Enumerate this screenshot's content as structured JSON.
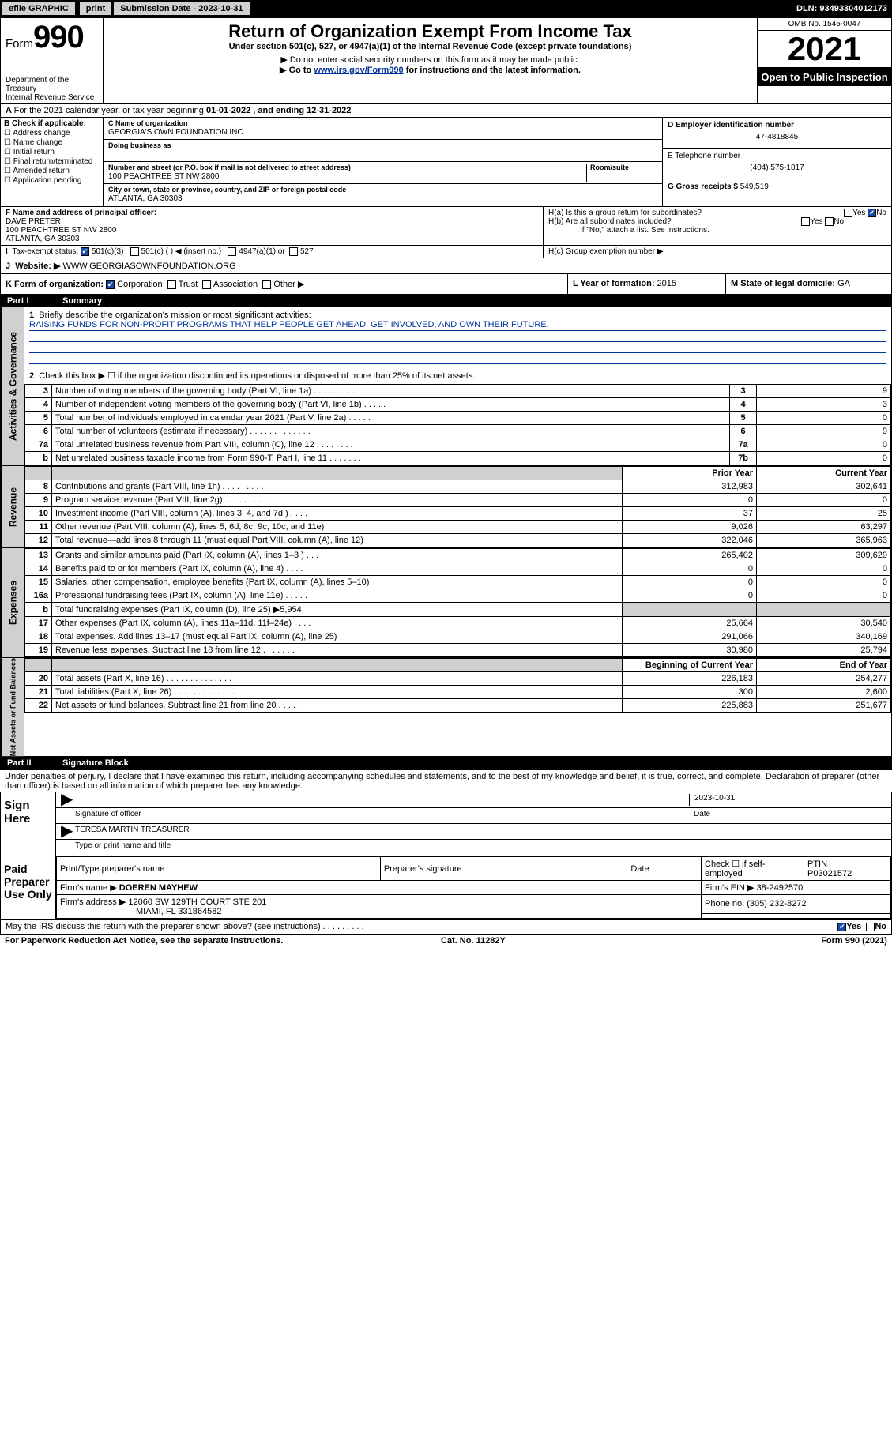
{
  "topbar": {
    "efile": "efile GRAPHIC",
    "print": "print",
    "subLabel": "Submission Date - ",
    "subDate": "2023-10-31",
    "dln": "DLN: 93493304012173"
  },
  "hdr": {
    "formWord": "Form",
    "formNum": "990",
    "dept": "Department of the Treasury",
    "irs": "Internal Revenue Service",
    "title": "Return of Organization Exempt From Income Tax",
    "sub1": "Under section 501(c), 527, or 4947(a)(1) of the Internal Revenue Code (except private foundations)",
    "sub2": "▶ Do not enter social security numbers on this form as it may be made public.",
    "sub3a": "▶ Go to ",
    "sub3link": "www.irs.gov/Form990",
    "sub3b": " for instructions and the latest information.",
    "omb": "OMB No. 1545-0047",
    "year": "2021",
    "open": "Open to Public Inspection"
  },
  "A": {
    "text": "For the 2021 calendar year, or tax year beginning ",
    "begin": "01-01-2022",
    "mid": " , and ending ",
    "end": "12-31-2022"
  },
  "B": {
    "label": "B Check if applicable:",
    "opts": [
      "Address change",
      "Name change",
      "Initial return",
      "Final return/terminated",
      "Amended return",
      "Application pending"
    ]
  },
  "C": {
    "nameLbl": "C Name of organization",
    "name": "GEORGIA'S OWN FOUNDATION INC",
    "dbaLbl": "Doing business as",
    "addrLbl": "Number and street (or P.O. box if mail is not delivered to street address)",
    "roomLbl": "Room/suite",
    "addr": "100 PEACHTREE ST NW 2800",
    "cityLbl": "City or town, state or province, country, and ZIP or foreign postal code",
    "city": "ATLANTA, GA  30303"
  },
  "D": {
    "lbl": "D Employer identification number",
    "val": "47-4818845"
  },
  "E": {
    "lbl": "E Telephone number",
    "val": "(404) 575-1817"
  },
  "G": {
    "lbl": "G Gross receipts $ ",
    "val": "549,519"
  },
  "F": {
    "lbl": "F  Name and address of principal officer:",
    "name": "DAVE PRETER",
    "addr": "100 PEACHTREE ST NW 2800",
    "city": "ATLANTA, GA  30303"
  },
  "H": {
    "a": "H(a)  Is this a group return for subordinates?",
    "b": "H(b)  Are all subordinates included?",
    "bnote": "If \"No,\" attach a list. See instructions.",
    "c": "H(c)  Group exemption number ▶",
    "yes": "Yes",
    "no": "No"
  },
  "I": {
    "lbl": "Tax-exempt status:",
    "o1": "501(c)(3)",
    "o2": "501(c) (  ) ◀ (insert no.)",
    "o3": "4947(a)(1) or",
    "o4": "527"
  },
  "J": {
    "lbl": "Website: ▶",
    "val": "WWW.GEORGIASOWNFOUNDATION.ORG"
  },
  "K": {
    "lbl": "K Form of organization:",
    "o1": "Corporation",
    "o2": "Trust",
    "o3": "Association",
    "o4": "Other ▶"
  },
  "L": {
    "lbl": "L Year of formation: ",
    "val": "2015"
  },
  "M": {
    "lbl": "M State of legal domicile: ",
    "val": "GA"
  },
  "part1": {
    "num": "Part I",
    "title": "Summary"
  },
  "mission": {
    "q": "Briefly describe the organization's mission or most significant activities:",
    "a": "RAISING FUNDS FOR NON-PROFIT PROGRAMS THAT HELP PEOPLE GET AHEAD, GET INVOLVED, AND OWN THEIR FUTURE."
  },
  "gov": {
    "side": "Activities & Governance",
    "l2": "Check this box ▶ ☐  if the organization discontinued its operations or disposed of more than 25% of its net assets.",
    "rows": [
      {
        "n": "3",
        "d": "Number of voting members of the governing body (Part VI, line 1a)  .   .   .   .   .   .   .   .   .",
        "b": "3",
        "v": "9"
      },
      {
        "n": "4",
        "d": "Number of independent voting members of the governing body (Part VI, line 1b)  .   .   .   .   .",
        "b": "4",
        "v": "3"
      },
      {
        "n": "5",
        "d": "Total number of individuals employed in calendar year 2021 (Part V, line 2a)  .   .   .   .   .   .",
        "b": "5",
        "v": "0"
      },
      {
        "n": "6",
        "d": "Total number of volunteers (estimate if necessary)  .   .   .   .   .   .   .   .   .   .   .   .   .",
        "b": "6",
        "v": "9"
      },
      {
        "n": "7a",
        "d": "Total unrelated business revenue from Part VIII, column (C), line 12  .   .   .   .   .   .   .   .",
        "b": "7a",
        "v": "0"
      },
      {
        "n": "b",
        "d": "Net unrelated business taxable income from Form 990-T, Part I, line 11  .   .   .   .   .   .   .",
        "b": "7b",
        "v": "0"
      }
    ]
  },
  "rev": {
    "side": "Revenue",
    "hPrior": "Prior Year",
    "hCurr": "Current Year",
    "rows": [
      {
        "n": "8",
        "d": "Contributions and grants (Part VIII, line 1h)  .   .   .   .   .   .   .   .   .",
        "p": "312,983",
        "c": "302,641"
      },
      {
        "n": "9",
        "d": "Program service revenue (Part VIII, line 2g)  .   .   .   .   .   .   .   .   .",
        "p": "0",
        "c": "0"
      },
      {
        "n": "10",
        "d": "Investment income (Part VIII, column (A), lines 3, 4, and 7d )  .   .   .   .",
        "p": "37",
        "c": "25"
      },
      {
        "n": "11",
        "d": "Other revenue (Part VIII, column (A), lines 5, 6d, 8c, 9c, 10c, and 11e)",
        "p": "9,026",
        "c": "63,297"
      },
      {
        "n": "12",
        "d": "Total revenue—add lines 8 through 11 (must equal Part VIII, column (A), line 12)",
        "p": "322,046",
        "c": "365,963"
      }
    ]
  },
  "exp": {
    "side": "Expenses",
    "rows": [
      {
        "n": "13",
        "d": "Grants and similar amounts paid (Part IX, column (A), lines 1–3 )  .   .   .",
        "p": "265,402",
        "c": "309,629"
      },
      {
        "n": "14",
        "d": "Benefits paid to or for members (Part IX, column (A), line 4)  .   .   .   .",
        "p": "0",
        "c": "0"
      },
      {
        "n": "15",
        "d": "Salaries, other compensation, employee benefits (Part IX, column (A), lines 5–10)",
        "p": "0",
        "c": "0"
      },
      {
        "n": "16a",
        "d": "Professional fundraising fees (Part IX, column (A), line 11e)  .   .   .   .   .",
        "p": "0",
        "c": "0"
      },
      {
        "n": "b",
        "d": "Total fundraising expenses (Part IX, column (D), line 25) ▶5,954",
        "p": "",
        "c": "",
        "grey": true
      },
      {
        "n": "17",
        "d": "Other expenses (Part IX, column (A), lines 11a–11d, 11f–24e)  .   .   .   .",
        "p": "25,664",
        "c": "30,540"
      },
      {
        "n": "18",
        "d": "Total expenses. Add lines 13–17 (must equal Part IX, column (A), line 25)",
        "p": "291,066",
        "c": "340,169"
      },
      {
        "n": "19",
        "d": "Revenue less expenses. Subtract line 18 from line 12  .   .   .   .   .   .   .",
        "p": "30,980",
        "c": "25,794"
      }
    ]
  },
  "na": {
    "side": "Net Assets or Fund Balances",
    "hBeg": "Beginning of Current Year",
    "hEnd": "End of Year",
    "rows": [
      {
        "n": "20",
        "d": "Total assets (Part X, line 16)  .   .   .   .   .   .   .   .   .   .   .   .   .   .",
        "p": "226,183",
        "c": "254,277"
      },
      {
        "n": "21",
        "d": "Total liabilities (Part X, line 26)  .   .   .   .   .   .   .   .   .   .   .   .   .",
        "p": "300",
        "c": "2,600"
      },
      {
        "n": "22",
        "d": "Net assets or fund balances. Subtract line 21 from line 20  .   .   .   .   .",
        "p": "225,883",
        "c": "251,677"
      }
    ]
  },
  "part2": {
    "num": "Part II",
    "title": "Signature Block"
  },
  "decl": "Under penalties of perjury, I declare that I have examined this return, including accompanying schedules and statements, and to the best of my knowledge and belief, it is true, correct, and complete. Declaration of preparer (other than officer) is based on all information of which preparer has any knowledge.",
  "sign": {
    "lbl": "Sign Here",
    "sigOff": "Signature of officer",
    "date": "Date",
    "dateVal": "2023-10-31",
    "name": "TERESA MARTIN  TREASURER",
    "nameLbl": "Type or print name and title"
  },
  "prep": {
    "lbl": "Paid Preparer Use Only",
    "h1": "Print/Type preparer's name",
    "h2": "Preparer's signature",
    "h3": "Date",
    "selfLbl": "Check ☐ if self-employed",
    "ptinLbl": "PTIN",
    "ptin": "P03021572",
    "firmLbl": "Firm's name   ▶",
    "firm": "DOEREN MAYHEW",
    "einLbl": "Firm's EIN ▶",
    "ein": "38-2492570",
    "addrLbl": "Firm's address ▶",
    "addr1": "12060 SW 129TH COURT STE 201",
    "addr2": "MIAMI, FL  331864582",
    "phLbl": "Phone no. ",
    "ph": "(305) 232-8272"
  },
  "discuss": "May the IRS discuss this return with the preparer shown above? (see instructions)  .   .   .   .   .   .   .   .   .",
  "foot": {
    "l": "For Paperwork Reduction Act Notice, see the separate instructions.",
    "m": "Cat. No. 11282Y",
    "r": "Form 990 (2021)"
  }
}
